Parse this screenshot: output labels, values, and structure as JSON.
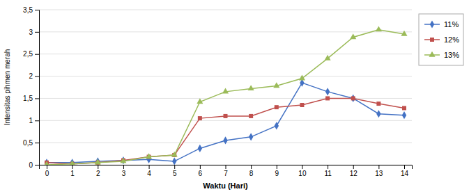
{
  "chart_data": {
    "type": "line",
    "xlabel": "Waktu (Hari)",
    "ylabel": "Intensitas pihmen merah",
    "x": [
      0,
      1,
      2,
      3,
      4,
      5,
      6,
      7,
      8,
      9,
      10,
      11,
      12,
      13,
      14
    ],
    "series": [
      {
        "name": "11%",
        "color": "#4472C4",
        "marker": "diamond",
        "values": [
          0.05,
          0.05,
          0.08,
          0.1,
          0.12,
          0.08,
          0.37,
          0.55,
          0.63,
          0.88,
          1.85,
          1.65,
          1.5,
          1.15,
          1.12
        ]
      },
      {
        "name": "12%",
        "color": "#C0504D",
        "marker": "square",
        "values": [
          0.05,
          0.02,
          0.05,
          0.1,
          0.18,
          0.22,
          1.05,
          1.1,
          1.1,
          1.3,
          1.35,
          1.5,
          1.5,
          1.38,
          1.28
        ]
      },
      {
        "name": "13%",
        "color": "#9BBB59",
        "marker": "triangle",
        "values": [
          0.0,
          0.02,
          0.05,
          0.08,
          0.18,
          0.22,
          1.42,
          1.65,
          1.72,
          1.78,
          1.95,
          2.4,
          2.88,
          3.05,
          2.95
        ]
      }
    ],
    "xlim": [
      -0.3,
      14.3
    ],
    "ylim": [
      0,
      3.5
    ],
    "xticks": [
      0,
      1,
      2,
      3,
      4,
      5,
      6,
      7,
      8,
      9,
      10,
      11,
      12,
      13,
      14
    ],
    "yticks": [
      0,
      {
        "value": 0.5,
        "label": "0,5"
      },
      1,
      {
        "value": 1.5,
        "label": "1,5"
      },
      2,
      {
        "value": 2.5,
        "label": "2,5"
      },
      3,
      {
        "value": 3.5,
        "label": "3,5"
      }
    ],
    "grid": true,
    "legend": "right"
  }
}
